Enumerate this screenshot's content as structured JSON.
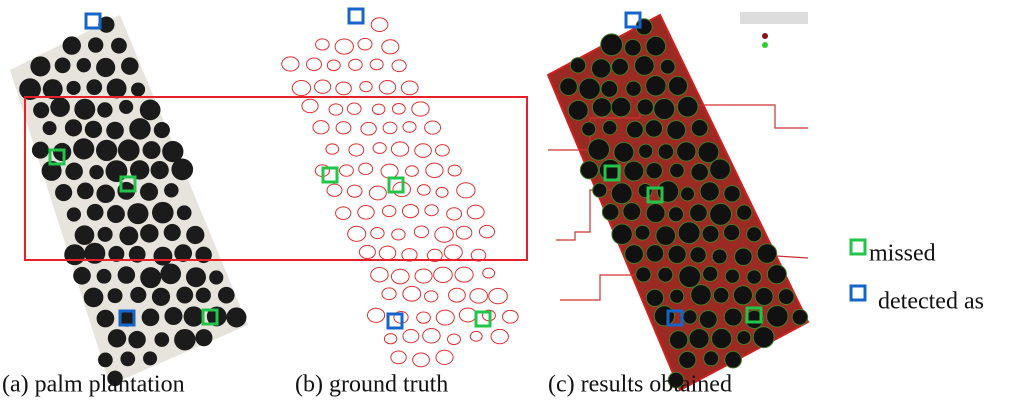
{
  "captions": {
    "a": "(a) palm plantation",
    "b": "(b) ground truth",
    "c": "(c) results obtained"
  },
  "legend": {
    "missed": "missed",
    "detected": "detected as"
  }
}
